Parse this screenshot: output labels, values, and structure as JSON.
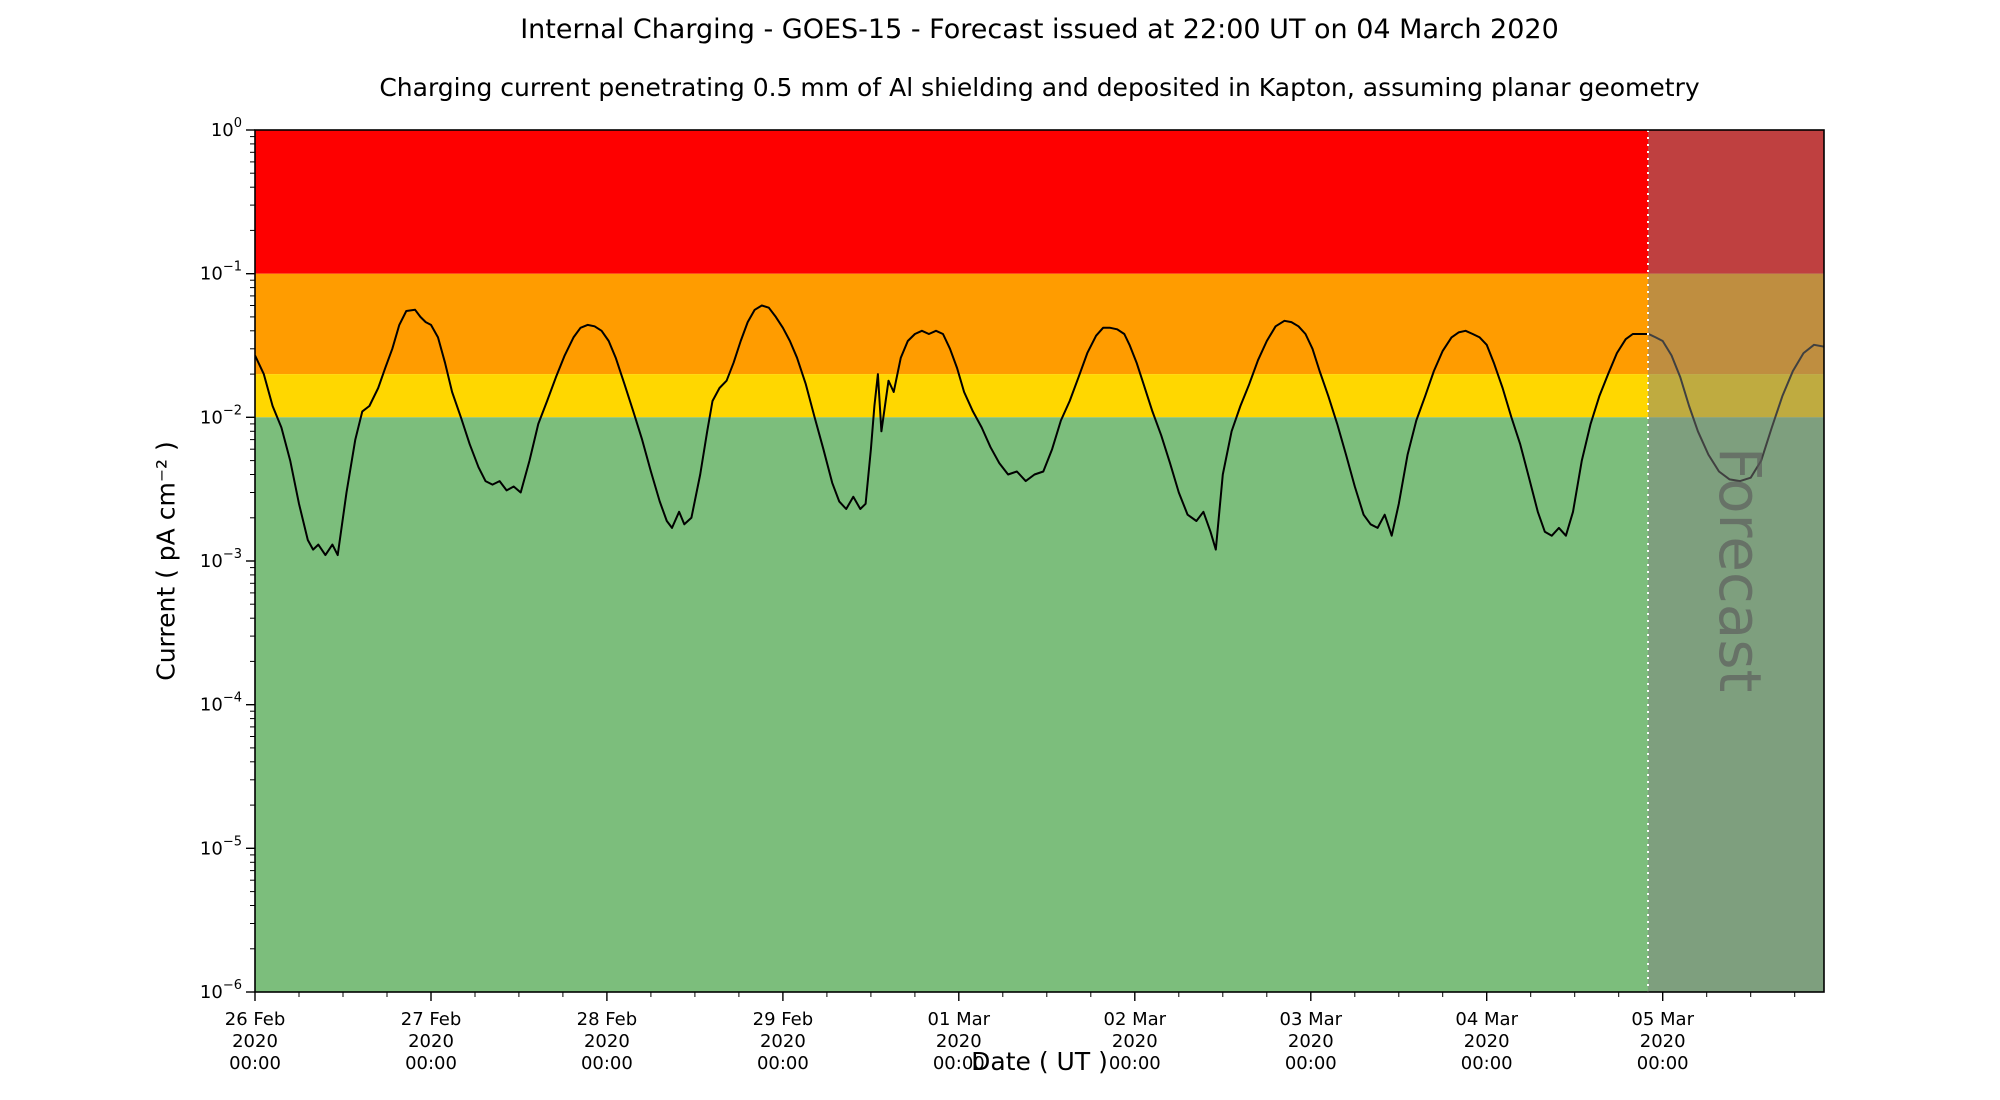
{
  "chart_data": {
    "type": "line",
    "title": "Internal Charging - GOES-15 - Forecast issued at 22:00 UT on 04 March 2020",
    "subtitle": "Charging current penetrating 0.5 mm of Al shielding and deposited in Kapton, assuming planar geometry",
    "x_axis": {
      "label": "Date ( UT )",
      "limits_days": [
        0,
        8.9167
      ],
      "minor_step_days": 0.25,
      "ticks": [
        {
          "t": 0,
          "lines": [
            "26 Feb",
            "2020",
            "00:00"
          ]
        },
        {
          "t": 1,
          "lines": [
            "27 Feb",
            "2020",
            "00:00"
          ]
        },
        {
          "t": 2,
          "lines": [
            "28 Feb",
            "2020",
            "00:00"
          ]
        },
        {
          "t": 3,
          "lines": [
            "29 Feb",
            "2020",
            "00:00"
          ]
        },
        {
          "t": 4,
          "lines": [
            "01 Mar",
            "2020",
            "00:00"
          ]
        },
        {
          "t": 5,
          "lines": [
            "02 Mar",
            "2020",
            "00:00"
          ]
        },
        {
          "t": 6,
          "lines": [
            "03 Mar",
            "2020",
            "00:00"
          ]
        },
        {
          "t": 7,
          "lines": [
            "04 Mar",
            "2020",
            "00:00"
          ]
        },
        {
          "t": 8,
          "lines": [
            "05 Mar",
            "2020",
            "00:00"
          ]
        }
      ]
    },
    "y_axis": {
      "label": "Current ( pA cm⁻² )",
      "scale": "log",
      "limits": [
        1e-06,
        1
      ],
      "tick_exponents": [
        0,
        -1,
        -2,
        -3,
        -4,
        -5,
        -6
      ]
    },
    "bands": [
      {
        "name": "red",
        "ymin": 0.1,
        "ymax": 1.0,
        "color": "#fe0000"
      },
      {
        "name": "orange",
        "ymin": 0.02,
        "ymax": 0.1,
        "color": "#ff9c00"
      },
      {
        "name": "yellow",
        "ymin": 0.01,
        "ymax": 0.02,
        "color": "#ffd700"
      },
      {
        "name": "green",
        "ymin": 1e-06,
        "ymax": 0.01,
        "color": "#7cbe7c"
      }
    ],
    "forecast": {
      "label": "Forecast",
      "start_days": 7.9167,
      "overlay_color": "#808080",
      "overlay_opacity": 0.5,
      "divider_color": "#ffffff",
      "label_color": "#5a5a5a"
    },
    "series": [
      {
        "name": "charging-current",
        "color": "#000000",
        "points": [
          [
            0.0,
            0.027
          ],
          [
            0.05,
            0.02
          ],
          [
            0.1,
            0.012
          ],
          [
            0.15,
            0.0085
          ],
          [
            0.2,
            0.005
          ],
          [
            0.25,
            0.0025
          ],
          [
            0.3,
            0.0014
          ],
          [
            0.33,
            0.0012
          ],
          [
            0.36,
            0.0013
          ],
          [
            0.4,
            0.0011
          ],
          [
            0.44,
            0.0013
          ],
          [
            0.47,
            0.0011
          ],
          [
            0.52,
            0.003
          ],
          [
            0.57,
            0.007
          ],
          [
            0.61,
            0.011
          ],
          [
            0.65,
            0.012
          ],
          [
            0.7,
            0.016
          ],
          [
            0.74,
            0.022
          ],
          [
            0.78,
            0.03
          ],
          [
            0.82,
            0.044
          ],
          [
            0.86,
            0.055
          ],
          [
            0.91,
            0.056
          ],
          [
            0.94,
            0.05
          ],
          [
            0.97,
            0.046
          ],
          [
            1.0,
            0.044
          ],
          [
            1.04,
            0.036
          ],
          [
            1.08,
            0.024
          ],
          [
            1.12,
            0.015
          ],
          [
            1.17,
            0.01
          ],
          [
            1.22,
            0.0065
          ],
          [
            1.27,
            0.0045
          ],
          [
            1.31,
            0.0036
          ],
          [
            1.35,
            0.0034
          ],
          [
            1.39,
            0.0036
          ],
          [
            1.43,
            0.0031
          ],
          [
            1.47,
            0.0033
          ],
          [
            1.51,
            0.003
          ],
          [
            1.56,
            0.005
          ],
          [
            1.61,
            0.009
          ],
          [
            1.66,
            0.013
          ],
          [
            1.71,
            0.019
          ],
          [
            1.76,
            0.027
          ],
          [
            1.81,
            0.036
          ],
          [
            1.85,
            0.042
          ],
          [
            1.89,
            0.044
          ],
          [
            1.93,
            0.043
          ],
          [
            1.97,
            0.04
          ],
          [
            2.01,
            0.034
          ],
          [
            2.05,
            0.026
          ],
          [
            2.1,
            0.017
          ],
          [
            2.15,
            0.011
          ],
          [
            2.2,
            0.007
          ],
          [
            2.25,
            0.0042
          ],
          [
            2.3,
            0.0026
          ],
          [
            2.34,
            0.0019
          ],
          [
            2.37,
            0.0017
          ],
          [
            2.41,
            0.0022
          ],
          [
            2.44,
            0.0018
          ],
          [
            2.48,
            0.002
          ],
          [
            2.53,
            0.004
          ],
          [
            2.57,
            0.008
          ],
          [
            2.6,
            0.013
          ],
          [
            2.64,
            0.016
          ],
          [
            2.68,
            0.018
          ],
          [
            2.72,
            0.024
          ],
          [
            2.76,
            0.034
          ],
          [
            2.8,
            0.046
          ],
          [
            2.84,
            0.056
          ],
          [
            2.88,
            0.06
          ],
          [
            2.92,
            0.058
          ],
          [
            2.96,
            0.05
          ],
          [
            3.0,
            0.042
          ],
          [
            3.04,
            0.034
          ],
          [
            3.08,
            0.026
          ],
          [
            3.13,
            0.017
          ],
          [
            3.18,
            0.01
          ],
          [
            3.23,
            0.006
          ],
          [
            3.28,
            0.0035
          ],
          [
            3.32,
            0.0026
          ],
          [
            3.36,
            0.0023
          ],
          [
            3.4,
            0.0028
          ],
          [
            3.44,
            0.0023
          ],
          [
            3.47,
            0.0025
          ],
          [
            3.5,
            0.006
          ],
          [
            3.52,
            0.012
          ],
          [
            3.54,
            0.02
          ],
          [
            3.56,
            0.008
          ],
          [
            3.6,
            0.018
          ],
          [
            3.63,
            0.015
          ],
          [
            3.67,
            0.026
          ],
          [
            3.71,
            0.034
          ],
          [
            3.75,
            0.038
          ],
          [
            3.79,
            0.04
          ],
          [
            3.83,
            0.038
          ],
          [
            3.87,
            0.04
          ],
          [
            3.91,
            0.038
          ],
          [
            3.95,
            0.03
          ],
          [
            3.99,
            0.022
          ],
          [
            4.03,
            0.015
          ],
          [
            4.08,
            0.011
          ],
          [
            4.13,
            0.0085
          ],
          [
            4.18,
            0.0062
          ],
          [
            4.23,
            0.0048
          ],
          [
            4.28,
            0.004
          ],
          [
            4.33,
            0.0042
          ],
          [
            4.38,
            0.0036
          ],
          [
            4.43,
            0.004
          ],
          [
            4.48,
            0.0042
          ],
          [
            4.53,
            0.006
          ],
          [
            4.58,
            0.0095
          ],
          [
            4.63,
            0.013
          ],
          [
            4.68,
            0.019
          ],
          [
            4.73,
            0.028
          ],
          [
            4.78,
            0.037
          ],
          [
            4.82,
            0.042
          ],
          [
            4.86,
            0.042
          ],
          [
            4.9,
            0.041
          ],
          [
            4.94,
            0.038
          ],
          [
            4.97,
            0.032
          ],
          [
            5.01,
            0.024
          ],
          [
            5.05,
            0.017
          ],
          [
            5.1,
            0.011
          ],
          [
            5.15,
            0.0075
          ],
          [
            5.2,
            0.0048
          ],
          [
            5.25,
            0.003
          ],
          [
            5.3,
            0.0021
          ],
          [
            5.35,
            0.0019
          ],
          [
            5.39,
            0.0022
          ],
          [
            5.43,
            0.0016
          ],
          [
            5.46,
            0.0012
          ],
          [
            5.5,
            0.004
          ],
          [
            5.55,
            0.008
          ],
          [
            5.6,
            0.012
          ],
          [
            5.65,
            0.017
          ],
          [
            5.7,
            0.025
          ],
          [
            5.75,
            0.034
          ],
          [
            5.8,
            0.043
          ],
          [
            5.85,
            0.047
          ],
          [
            5.89,
            0.046
          ],
          [
            5.93,
            0.043
          ],
          [
            5.97,
            0.038
          ],
          [
            6.01,
            0.03
          ],
          [
            6.05,
            0.021
          ],
          [
            6.1,
            0.014
          ],
          [
            6.15,
            0.009
          ],
          [
            6.2,
            0.0055
          ],
          [
            6.25,
            0.0033
          ],
          [
            6.3,
            0.0021
          ],
          [
            6.34,
            0.0018
          ],
          [
            6.38,
            0.0017
          ],
          [
            6.42,
            0.0021
          ],
          [
            6.46,
            0.0015
          ],
          [
            6.5,
            0.0025
          ],
          [
            6.55,
            0.0055
          ],
          [
            6.6,
            0.0095
          ],
          [
            6.65,
            0.014
          ],
          [
            6.7,
            0.021
          ],
          [
            6.75,
            0.029
          ],
          [
            6.8,
            0.036
          ],
          [
            6.84,
            0.039
          ],
          [
            6.88,
            0.04
          ],
          [
            6.92,
            0.038
          ],
          [
            6.96,
            0.036
          ],
          [
            7.0,
            0.032
          ],
          [
            7.04,
            0.024
          ],
          [
            7.09,
            0.016
          ],
          [
            7.14,
            0.01
          ],
          [
            7.19,
            0.0065
          ],
          [
            7.24,
            0.0038
          ],
          [
            7.29,
            0.0022
          ],
          [
            7.33,
            0.0016
          ],
          [
            7.37,
            0.0015
          ],
          [
            7.41,
            0.0017
          ],
          [
            7.45,
            0.0015
          ],
          [
            7.49,
            0.0022
          ],
          [
            7.54,
            0.005
          ],
          [
            7.59,
            0.009
          ],
          [
            7.64,
            0.014
          ],
          [
            7.69,
            0.02
          ],
          [
            7.74,
            0.028
          ],
          [
            7.79,
            0.035
          ],
          [
            7.83,
            0.038
          ],
          [
            7.88,
            0.038
          ],
          [
            7.92,
            0.038
          ],
          [
            7.96,
            0.036
          ],
          [
            8.0,
            0.034
          ],
          [
            8.05,
            0.027
          ],
          [
            8.1,
            0.019
          ],
          [
            8.15,
            0.012
          ],
          [
            8.2,
            0.008
          ],
          [
            8.26,
            0.0055
          ],
          [
            8.32,
            0.0042
          ],
          [
            8.38,
            0.0037
          ],
          [
            8.44,
            0.0036
          ],
          [
            8.5,
            0.0038
          ],
          [
            8.56,
            0.005
          ],
          [
            8.62,
            0.0085
          ],
          [
            8.68,
            0.014
          ],
          [
            8.74,
            0.021
          ],
          [
            8.8,
            0.028
          ],
          [
            8.86,
            0.032
          ],
          [
            8.9167,
            0.031
          ]
        ]
      }
    ]
  }
}
